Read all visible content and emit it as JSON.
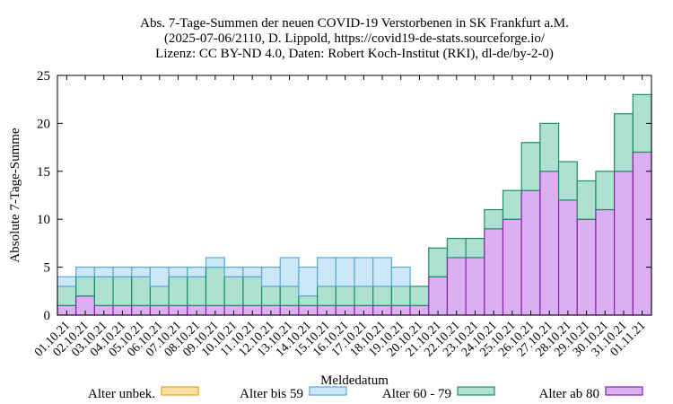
{
  "chart_data": {
    "type": "bar",
    "stacked": true,
    "title": [
      "Abs. 7-Tage-Summen der neuen COVID-19 Verstorbenen in SK Frankfurt a.M.",
      "(2025-07-06/2110, D. Lippold, https://covid19-de-stats.sourceforge.io/",
      "Lizenz: CC BY-ND 4.0, Daten: Robert Koch-Institut (RKI), dl-de/by-2-0)"
    ],
    "xlabel": "Meldedatum",
    "ylabel": "Absolute 7-Tage-Summe",
    "ylim": [
      0,
      25
    ],
    "yticks": [
      0,
      5,
      10,
      15,
      20,
      25
    ],
    "grid": false,
    "legend_position": "bottom",
    "categories": [
      "01.10.21",
      "02.10.21",
      "03.10.21",
      "04.10.21",
      "05.10.21",
      "06.10.21",
      "07.10.21",
      "08.10.21",
      "09.10.21",
      "10.10.21",
      "11.10.21",
      "12.10.21",
      "13.10.21",
      "14.10.21",
      "15.10.21",
      "16.10.21",
      "17.10.21",
      "18.10.21",
      "19.10.21",
      "20.10.21",
      "21.10.21",
      "22.10.21",
      "23.10.21",
      "24.10.21",
      "25.10.21",
      "26.10.21",
      "27.10.21",
      "28.10.21",
      "29.10.21",
      "30.10.21",
      "31.10.21",
      "01.11.21"
    ],
    "series": [
      {
        "name": "Alter ab 80",
        "color": "#dcb0f0",
        "stroke": "#8a1fb0",
        "values": [
          1,
          2,
          1,
          1,
          1,
          1,
          1,
          1,
          1,
          1,
          1,
          1,
          1,
          1,
          1,
          1,
          1,
          1,
          1,
          1,
          4,
          6,
          6,
          9,
          10,
          13,
          15,
          12,
          10,
          11,
          15,
          17
        ]
      },
      {
        "name": "Alter 60 - 79",
        "color": "#b0e0d0",
        "stroke": "#1a9068",
        "values": [
          2,
          2,
          3,
          3,
          3,
          2,
          3,
          3,
          4,
          3,
          3,
          2,
          2,
          1,
          2,
          2,
          2,
          2,
          2,
          2,
          3,
          2,
          2,
          2,
          3,
          5,
          5,
          4,
          4,
          4,
          6,
          6
        ]
      },
      {
        "name": "Alter bis 59",
        "color": "#cce8f8",
        "stroke": "#5aa8d8",
        "values": [
          1,
          1,
          1,
          1,
          1,
          2,
          1,
          1,
          1,
          1,
          1,
          2,
          3,
          3,
          3,
          3,
          3,
          3,
          2,
          0,
          0,
          0,
          0,
          0,
          0,
          0,
          0,
          0,
          0,
          0,
          0,
          0
        ]
      },
      {
        "name": "Alter unbek.",
        "color": "#fbe0a0",
        "stroke": "#e0a020",
        "values": [
          0,
          0,
          0,
          0,
          0,
          0,
          0,
          0,
          0,
          0,
          0,
          0,
          0,
          0,
          0,
          0,
          0,
          0,
          0,
          0,
          0,
          0,
          0,
          0,
          0,
          0,
          0,
          0,
          0,
          0,
          0,
          0
        ]
      }
    ],
    "legend_order": [
      "Alter unbek.",
      "Alter bis 59",
      "Alter 60 - 79",
      "Alter ab 80"
    ]
  }
}
